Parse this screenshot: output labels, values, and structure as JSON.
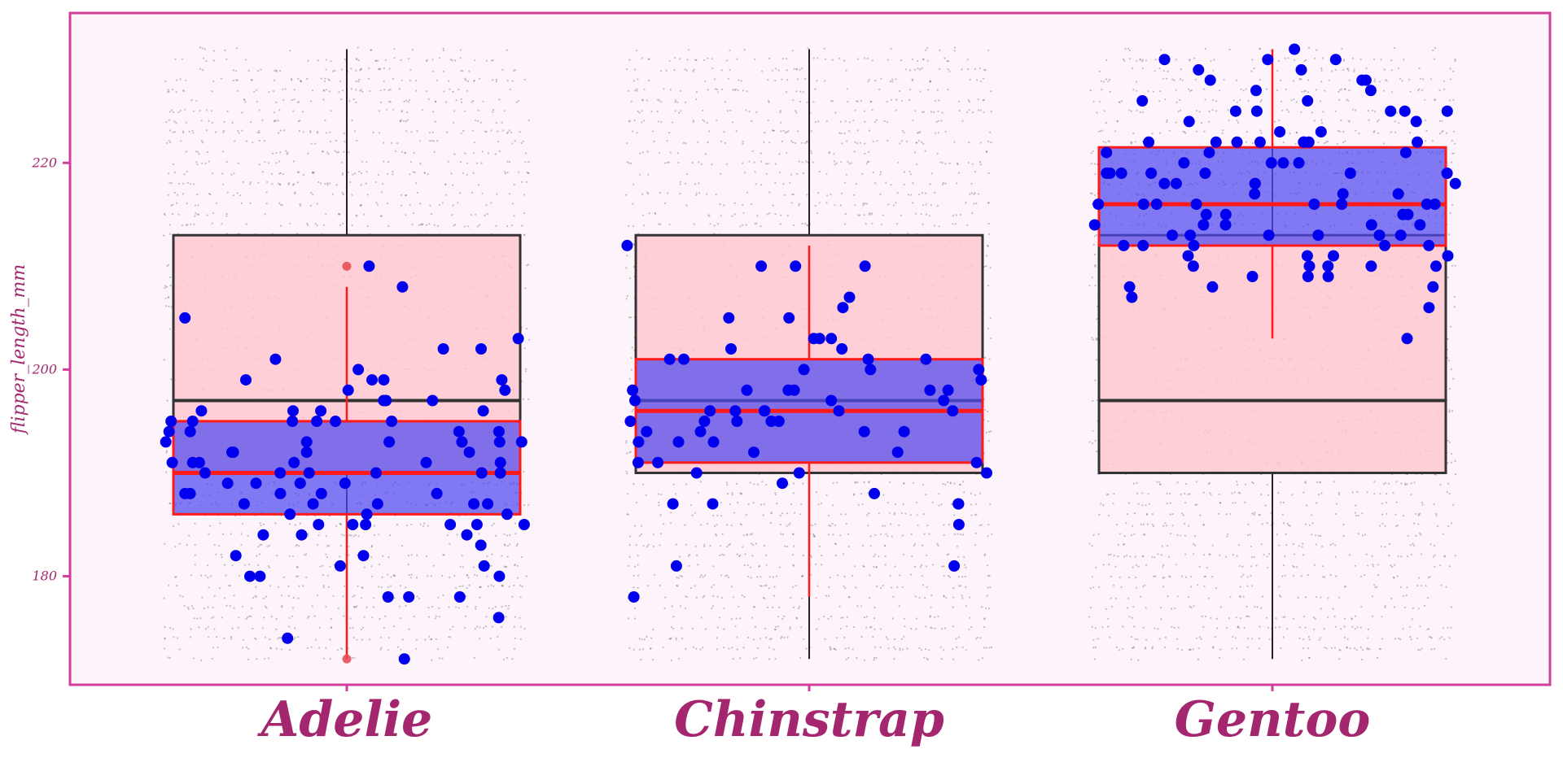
{
  "chart_data": {
    "type": "box",
    "ylabel": "flipper_length_mm",
    "xlabel": "",
    "title": "",
    "categories": [
      "Adelie",
      "Chinstrap",
      "Gentoo"
    ],
    "ylim": [
      169.5,
      234.5
    ],
    "yticks": [
      180,
      200,
      220
    ],
    "grid": false,
    "colors": {
      "panel_border": "#d13f9b",
      "panel_fill": "#fdf3fa",
      "text": "#a4266e",
      "outer_box_fill": "#ffc8d0",
      "outer_box_line": "#333333",
      "inner_box_fill": "#5048f0",
      "inner_box_line": "#ff1a1a",
      "points": "#0000ee",
      "background_points": "#555555"
    },
    "outer_boxes": [
      {
        "category": "Adelie",
        "whisker_low": 172,
        "q1": 190,
        "median": 197,
        "q3": 213,
        "whisker_high": 231
      },
      {
        "category": "Chinstrap",
        "whisker_low": 172,
        "q1": 190,
        "median": 197,
        "q3": 213,
        "whisker_high": 231
      },
      {
        "category": "Gentoo",
        "whisker_low": 172,
        "q1": 190,
        "median": 197,
        "q3": 213,
        "whisker_high": 231
      }
    ],
    "inner_boxes": [
      {
        "category": "Adelie",
        "whisker_low": 172,
        "q1": 186,
        "median": 190,
        "q3": 195,
        "whisker_high": 208,
        "outliers": [
          210,
          172
        ]
      },
      {
        "category": "Chinstrap",
        "whisker_low": 178,
        "q1": 191,
        "median": 196,
        "q3": 201,
        "whisker_high": 212,
        "outliers": []
      },
      {
        "category": "Gentoo",
        "whisker_low": 203,
        "q1": 212,
        "median": 216,
        "q3": 221.5,
        "whisker_high": 231,
        "outliers": []
      }
    ],
    "series": [
      {
        "category": "Adelie",
        "values": [
          205,
          199,
          197,
          195,
          193,
          191,
          190,
          187,
          185,
          184,
          181,
          180,
          178,
          202,
          203,
          199,
          197,
          196,
          195,
          194,
          193,
          192,
          191,
          190,
          189,
          188,
          187,
          186,
          185,
          184,
          182,
          180,
          174,
          201,
          200,
          199,
          198,
          197,
          196,
          195,
          194,
          193,
          192,
          191,
          190,
          189,
          188,
          187,
          185,
          183,
          181,
          208,
          210,
          202,
          196,
          195,
          194,
          193,
          192,
          191,
          190,
          189,
          188,
          187,
          185,
          182,
          180,
          176,
          198,
          196,
          195,
          194,
          193,
          192,
          191,
          190,
          189,
          188,
          187,
          186,
          185,
          184,
          178,
          172,
          199,
          195,
          193,
          191,
          190,
          188,
          186,
          185,
          178
        ]
      },
      {
        "category": "Chinstrap",
        "values": [
          193,
          205,
          201,
          197,
          188,
          187,
          185,
          210,
          207,
          206,
          203,
          203,
          202,
          200,
          198,
          196,
          194,
          193,
          189,
          187,
          181,
          178,
          198,
          195,
          191,
          190,
          187,
          203,
          200,
          199,
          198,
          196,
          195,
          194,
          192,
          190,
          201,
          198,
          196,
          195,
          194,
          193,
          192,
          191,
          212,
          200,
          198,
          197,
          196,
          195,
          194,
          190,
          205,
          202,
          198,
          197,
          196,
          191,
          187,
          181,
          210,
          210,
          201,
          196,
          195,
          201
        ]
      },
      {
        "category": "Gentoo",
        "values": [
          221,
          218,
          210,
          208,
          222,
          230,
          228,
          216,
          214,
          212,
          210,
          218,
          222,
          220,
          217,
          215,
          213,
          211,
          226,
          225,
          222,
          219,
          217,
          215,
          213,
          208,
          229,
          224,
          221,
          219,
          216,
          214,
          211,
          230,
          227,
          222,
          219,
          216,
          214,
          212,
          209,
          230,
          228,
          225,
          222,
          219,
          216,
          213,
          210,
          206,
          225,
          223,
          220,
          218,
          215,
          212,
          208,
          222,
          219,
          216,
          214,
          211,
          209,
          231,
          229,
          225,
          222,
          219,
          216,
          213,
          210,
          207,
          228,
          223,
          220,
          217,
          215,
          212,
          203,
          226,
          224,
          221,
          218,
          216,
          213,
          210,
          227,
          225,
          222,
          219,
          216,
          213,
          211,
          214,
          212,
          209,
          220,
          218
        ]
      }
    ]
  }
}
